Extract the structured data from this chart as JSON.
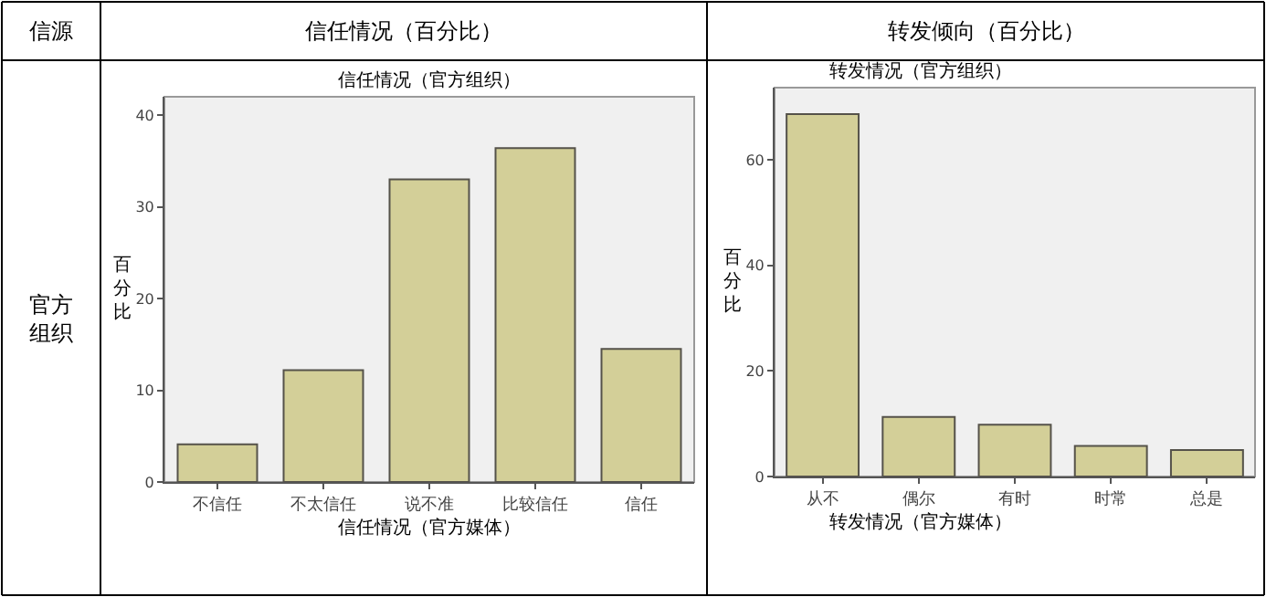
{
  "chart_data": [
    {
      "type": "bar",
      "title": "信任情况（官方组织）",
      "xlabel": "信任情况（官方媒体）",
      "ylabel": "百分比",
      "annotations": [
        "信源",
        "信任情况（百分比）",
        "官方组织"
      ],
      "categories": [
        "不信任",
        "不太信任",
        "说不准",
        "比较信任",
        "信任"
      ],
      "values": [
        4.1,
        12.2,
        33.0,
        36.4,
        14.5
      ],
      "color": "#d3cf98",
      "ylim": [
        0,
        42
      ],
      "yticks": [
        0,
        10,
        20,
        30,
        40
      ],
      "grid": false,
      "legend": false
    },
    {
      "type": "bar",
      "title": "转发情况（官方组织）",
      "xlabel": "转发情况（官方媒体）",
      "ylabel": "百分比",
      "annotations": [
        "转发倾向（百分比）"
      ],
      "categories": [
        "从不",
        "偶尔",
        "有时",
        "时常",
        "总是"
      ],
      "values": [
        68.7,
        11.3,
        9.8,
        5.8,
        5.0
      ],
      "color": "#d3cf98",
      "ylim": [
        0,
        73.7
      ],
      "yticks": [
        0,
        20,
        40,
        60
      ],
      "grid": false,
      "legend": false
    }
  ]
}
